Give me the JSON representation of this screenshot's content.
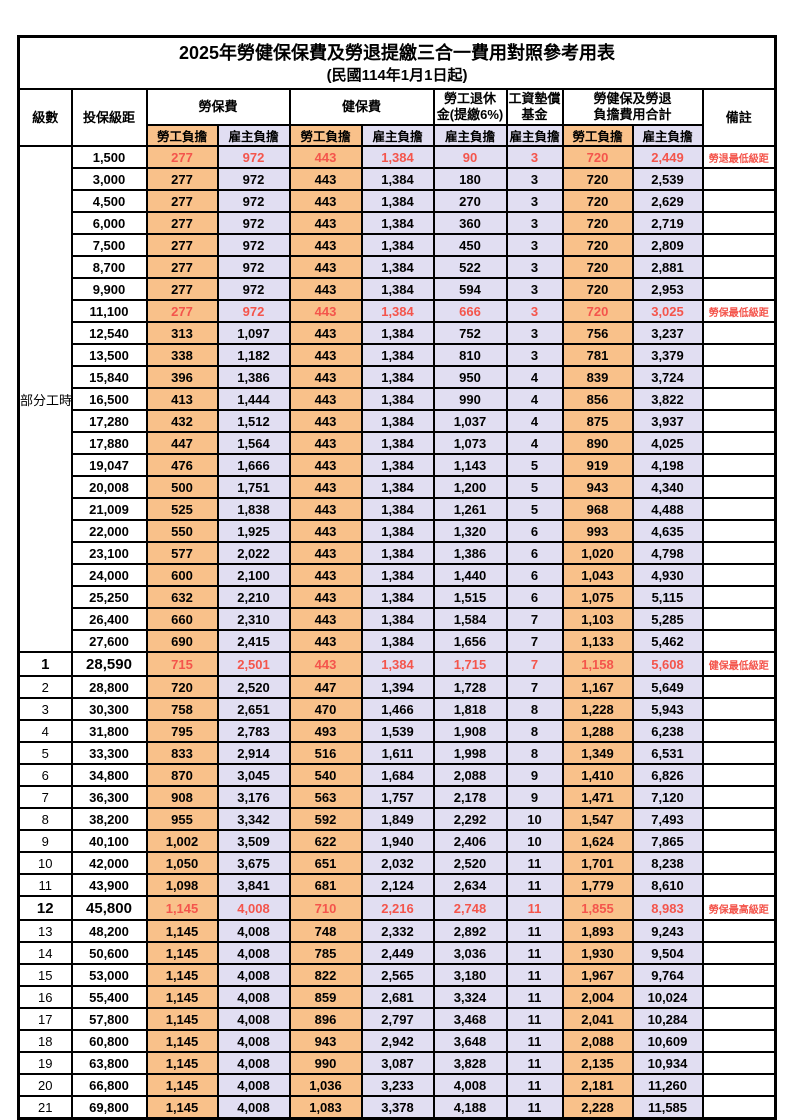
{
  "title": "2025年勞健保保費及勞退提繳三合一費用對照參考用表",
  "subtitle": "(民國114年1月1日起)",
  "header": {
    "level": "級數",
    "bracket": "投保級距",
    "labor_insurance": "勞保費",
    "health_insurance": "健保費",
    "pension_line1": "勞工退休",
    "pension_line2": "金(提繳6%)",
    "wage_fund_line1": "工資墊償",
    "wage_fund_line2": "基金",
    "total_line1": "勞健保及勞退",
    "total_line2": "負擔費用合計",
    "remark": "備註",
    "employee": "勞工負擔",
    "employer": "雇主負擔"
  },
  "part_time_label": "部分工時",
  "part_time_rowspan": 23,
  "colors": {
    "employee_bg": "#F9C18A",
    "employer_bg": "#E1DEF2",
    "highlight_red": "#F4554C"
  },
  "rows": [
    {
      "level": "",
      "bracket": "1,500",
      "values": [
        "277",
        "972",
        "443",
        "1,384",
        "90",
        "3",
        "720",
        "2,449"
      ],
      "remark": "勞退最低級距",
      "red": true
    },
    {
      "level": "",
      "bracket": "3,000",
      "values": [
        "277",
        "972",
        "443",
        "1,384",
        "180",
        "3",
        "720",
        "2,539"
      ],
      "remark": ""
    },
    {
      "level": "",
      "bracket": "4,500",
      "values": [
        "277",
        "972",
        "443",
        "1,384",
        "270",
        "3",
        "720",
        "2,629"
      ],
      "remark": ""
    },
    {
      "level": "",
      "bracket": "6,000",
      "values": [
        "277",
        "972",
        "443",
        "1,384",
        "360",
        "3",
        "720",
        "2,719"
      ],
      "remark": ""
    },
    {
      "level": "",
      "bracket": "7,500",
      "values": [
        "277",
        "972",
        "443",
        "1,384",
        "450",
        "3",
        "720",
        "2,809"
      ],
      "remark": ""
    },
    {
      "level": "",
      "bracket": "8,700",
      "values": [
        "277",
        "972",
        "443",
        "1,384",
        "522",
        "3",
        "720",
        "2,881"
      ],
      "remark": ""
    },
    {
      "level": "",
      "bracket": "9,900",
      "values": [
        "277",
        "972",
        "443",
        "1,384",
        "594",
        "3",
        "720",
        "2,953"
      ],
      "remark": ""
    },
    {
      "level": "",
      "bracket": "11,100",
      "values": [
        "277",
        "972",
        "443",
        "1,384",
        "666",
        "3",
        "720",
        "3,025"
      ],
      "remark": "勞保最低級距",
      "red": true
    },
    {
      "level": "",
      "bracket": "12,540",
      "values": [
        "313",
        "1,097",
        "443",
        "1,384",
        "752",
        "3",
        "756",
        "3,237"
      ],
      "remark": ""
    },
    {
      "level": "",
      "bracket": "13,500",
      "values": [
        "338",
        "1,182",
        "443",
        "1,384",
        "810",
        "3",
        "781",
        "3,379"
      ],
      "remark": ""
    },
    {
      "level": "",
      "bracket": "15,840",
      "values": [
        "396",
        "1,386",
        "443",
        "1,384",
        "950",
        "4",
        "839",
        "3,724"
      ],
      "remark": ""
    },
    {
      "level": "",
      "bracket": "16,500",
      "values": [
        "413",
        "1,444",
        "443",
        "1,384",
        "990",
        "4",
        "856",
        "3,822"
      ],
      "remark": ""
    },
    {
      "level": "",
      "bracket": "17,280",
      "values": [
        "432",
        "1,512",
        "443",
        "1,384",
        "1,037",
        "4",
        "875",
        "3,937"
      ],
      "remark": ""
    },
    {
      "level": "",
      "bracket": "17,880",
      "values": [
        "447",
        "1,564",
        "443",
        "1,384",
        "1,073",
        "4",
        "890",
        "4,025"
      ],
      "remark": ""
    },
    {
      "level": "",
      "bracket": "19,047",
      "values": [
        "476",
        "1,666",
        "443",
        "1,384",
        "1,143",
        "5",
        "919",
        "4,198"
      ],
      "remark": ""
    },
    {
      "level": "",
      "bracket": "20,008",
      "values": [
        "500",
        "1,751",
        "443",
        "1,384",
        "1,200",
        "5",
        "943",
        "4,340"
      ],
      "remark": ""
    },
    {
      "level": "",
      "bracket": "21,009",
      "values": [
        "525",
        "1,838",
        "443",
        "1,384",
        "1,261",
        "5",
        "968",
        "4,488"
      ],
      "remark": ""
    },
    {
      "level": "",
      "bracket": "22,000",
      "values": [
        "550",
        "1,925",
        "443",
        "1,384",
        "1,320",
        "6",
        "993",
        "4,635"
      ],
      "remark": ""
    },
    {
      "level": "",
      "bracket": "23,100",
      "values": [
        "577",
        "2,022",
        "443",
        "1,384",
        "1,386",
        "6",
        "1,020",
        "4,798"
      ],
      "remark": ""
    },
    {
      "level": "",
      "bracket": "24,000",
      "values": [
        "600",
        "2,100",
        "443",
        "1,384",
        "1,440",
        "6",
        "1,043",
        "4,930"
      ],
      "remark": ""
    },
    {
      "level": "",
      "bracket": "25,250",
      "values": [
        "632",
        "2,210",
        "443",
        "1,384",
        "1,515",
        "6",
        "1,075",
        "5,115"
      ],
      "remark": ""
    },
    {
      "level": "",
      "bracket": "26,400",
      "values": [
        "660",
        "2,310",
        "443",
        "1,384",
        "1,584",
        "7",
        "1,103",
        "5,285"
      ],
      "remark": ""
    },
    {
      "level": "",
      "bracket": "27,600",
      "values": [
        "690",
        "2,415",
        "443",
        "1,384",
        "1,656",
        "7",
        "1,133",
        "5,462"
      ],
      "remark": ""
    },
    {
      "level": "1",
      "bracket": "28,590",
      "values": [
        "715",
        "2,501",
        "443",
        "1,384",
        "1,715",
        "7",
        "1,158",
        "5,608"
      ],
      "remark": "健保最低級距",
      "red": true,
      "emph": true
    },
    {
      "level": "2",
      "bracket": "28,800",
      "values": [
        "720",
        "2,520",
        "447",
        "1,394",
        "1,728",
        "7",
        "1,167",
        "5,649"
      ],
      "remark": ""
    },
    {
      "level": "3",
      "bracket": "30,300",
      "values": [
        "758",
        "2,651",
        "470",
        "1,466",
        "1,818",
        "8",
        "1,228",
        "5,943"
      ],
      "remark": ""
    },
    {
      "level": "4",
      "bracket": "31,800",
      "values": [
        "795",
        "2,783",
        "493",
        "1,539",
        "1,908",
        "8",
        "1,288",
        "6,238"
      ],
      "remark": ""
    },
    {
      "level": "5",
      "bracket": "33,300",
      "values": [
        "833",
        "2,914",
        "516",
        "1,611",
        "1,998",
        "8",
        "1,349",
        "6,531"
      ],
      "remark": ""
    },
    {
      "level": "6",
      "bracket": "34,800",
      "values": [
        "870",
        "3,045",
        "540",
        "1,684",
        "2,088",
        "9",
        "1,410",
        "6,826"
      ],
      "remark": ""
    },
    {
      "level": "7",
      "bracket": "36,300",
      "values": [
        "908",
        "3,176",
        "563",
        "1,757",
        "2,178",
        "9",
        "1,471",
        "7,120"
      ],
      "remark": ""
    },
    {
      "level": "8",
      "bracket": "38,200",
      "values": [
        "955",
        "3,342",
        "592",
        "1,849",
        "2,292",
        "10",
        "1,547",
        "7,493"
      ],
      "remark": ""
    },
    {
      "level": "9",
      "bracket": "40,100",
      "values": [
        "1,002",
        "3,509",
        "622",
        "1,940",
        "2,406",
        "10",
        "1,624",
        "7,865"
      ],
      "remark": ""
    },
    {
      "level": "10",
      "bracket": "42,000",
      "values": [
        "1,050",
        "3,675",
        "651",
        "2,032",
        "2,520",
        "11",
        "1,701",
        "8,238"
      ],
      "remark": ""
    },
    {
      "level": "11",
      "bracket": "43,900",
      "values": [
        "1,098",
        "3,841",
        "681",
        "2,124",
        "2,634",
        "11",
        "1,779",
        "8,610"
      ],
      "remark": ""
    },
    {
      "level": "12",
      "bracket": "45,800",
      "values": [
        "1,145",
        "4,008",
        "710",
        "2,216",
        "2,748",
        "11",
        "1,855",
        "8,983"
      ],
      "remark": "勞保最高級距",
      "red": true,
      "emph": true
    },
    {
      "level": "13",
      "bracket": "48,200",
      "values": [
        "1,145",
        "4,008",
        "748",
        "2,332",
        "2,892",
        "11",
        "1,893",
        "9,243"
      ],
      "remark": ""
    },
    {
      "level": "14",
      "bracket": "50,600",
      "values": [
        "1,145",
        "4,008",
        "785",
        "2,449",
        "3,036",
        "11",
        "1,930",
        "9,504"
      ],
      "remark": ""
    },
    {
      "level": "15",
      "bracket": "53,000",
      "values": [
        "1,145",
        "4,008",
        "822",
        "2,565",
        "3,180",
        "11",
        "1,967",
        "9,764"
      ],
      "remark": ""
    },
    {
      "level": "16",
      "bracket": "55,400",
      "values": [
        "1,145",
        "4,008",
        "859",
        "2,681",
        "3,324",
        "11",
        "2,004",
        "10,024"
      ],
      "remark": ""
    },
    {
      "level": "17",
      "bracket": "57,800",
      "values": [
        "1,145",
        "4,008",
        "896",
        "2,797",
        "3,468",
        "11",
        "2,041",
        "10,284"
      ],
      "remark": ""
    },
    {
      "level": "18",
      "bracket": "60,800",
      "values": [
        "1,145",
        "4,008",
        "943",
        "2,942",
        "3,648",
        "11",
        "2,088",
        "10,609"
      ],
      "remark": ""
    },
    {
      "level": "19",
      "bracket": "63,800",
      "values": [
        "1,145",
        "4,008",
        "990",
        "3,087",
        "3,828",
        "11",
        "2,135",
        "10,934"
      ],
      "remark": ""
    },
    {
      "level": "20",
      "bracket": "66,800",
      "values": [
        "1,145",
        "4,008",
        "1,036",
        "3,233",
        "4,008",
        "11",
        "2,181",
        "11,260"
      ],
      "remark": ""
    },
    {
      "level": "21",
      "bracket": "69,800",
      "values": [
        "1,145",
        "4,008",
        "1,083",
        "3,378",
        "4,188",
        "11",
        "2,228",
        "11,585"
      ],
      "remark": ""
    }
  ]
}
